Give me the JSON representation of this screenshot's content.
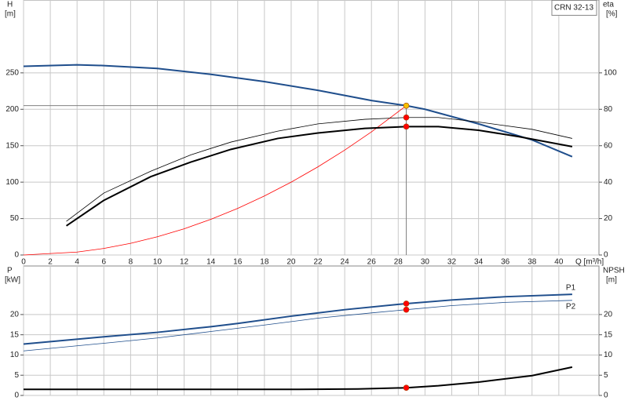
{
  "chart_data": [
    {
      "type": "line",
      "legend_box": "CRN 32-13",
      "y_label": "H",
      "y_unit": "[m]",
      "y2_label": "eta",
      "y2_unit": "[%]",
      "x_label": "Q [m³/h]",
      "xlim": [
        0,
        43
      ],
      "xticks": [
        0,
        2,
        4,
        6,
        8,
        10,
        12,
        14,
        16,
        18,
        20,
        22,
        24,
        26,
        28,
        30,
        32,
        34,
        36,
        38,
        40
      ],
      "ylim": [
        0,
        350
      ],
      "yticks": [
        0,
        50,
        100,
        150,
        200,
        250
      ],
      "y2lim": [
        0,
        140
      ],
      "y2ticks": [
        0,
        20,
        40,
        60,
        80,
        100
      ],
      "grid": true,
      "show_xtick_labels": true,
      "duty_point": {
        "x": 28.6,
        "y": 205,
        "color": "#808080"
      },
      "series": [
        {
          "color": "#1f4e8c",
          "width": 2,
          "axis": "y",
          "x": [
            0,
            4,
            6,
            10,
            14,
            18,
            22,
            26,
            28.6,
            30,
            34,
            38,
            41
          ],
          "values": [
            259,
            261,
            260,
            256,
            248,
            238,
            226,
            212,
            205,
            200,
            180,
            158,
            135
          ]
        },
        {
          "color": "#ff0000",
          "width": 0.8,
          "axis": "y",
          "x": [
            0,
            4,
            6,
            8,
            10,
            12,
            14,
            16,
            18,
            20,
            22,
            24,
            26,
            28.6
          ],
          "values": [
            0,
            4,
            9,
            16,
            25,
            36,
            49,
            64,
            81,
            100,
            121,
            144,
            169,
            205
          ]
        },
        {
          "color": "#000000",
          "width": 2,
          "axis": "y2",
          "x": [
            3.2,
            6,
            9.5,
            12.5,
            15.5,
            19,
            22,
            25.5,
            28.6,
            31,
            34,
            37,
            41
          ],
          "values": [
            16,
            30,
            43,
            51,
            58,
            64,
            67,
            69.5,
            70.5,
            70.5,
            68.5,
            65,
            59.5
          ]
        },
        {
          "color": "#000000",
          "width": 0.8,
          "axis": "y2",
          "x": [
            3.2,
            6,
            9.5,
            12.5,
            15.5,
            19,
            22,
            25.5,
            28.6,
            31,
            34,
            38,
            41
          ],
          "values": [
            18.5,
            34,
            46,
            55,
            62,
            68,
            72,
            74.5,
            75.5,
            75.5,
            73,
            69,
            64
          ]
        }
      ],
      "points": [
        {
          "x": 28.6,
          "y": 205,
          "axis": "y",
          "color": "#f5c000"
        },
        {
          "x": 28.6,
          "y": 75.5,
          "axis": "y2",
          "color": "#ff0000"
        },
        {
          "x": 28.6,
          "y": 70.5,
          "axis": "y2",
          "color": "#ff0000"
        }
      ]
    },
    {
      "type": "line",
      "y_label": "P",
      "y_unit": "[kW]",
      "y2_label": "NPSH",
      "y2_unit": "[m]",
      "xlim": [
        0,
        43
      ],
      "xticks": [
        0,
        2,
        4,
        6,
        8,
        10,
        12,
        14,
        16,
        18,
        20,
        22,
        24,
        26,
        28,
        30,
        32,
        34,
        36,
        38,
        40
      ],
      "ylim": [
        0,
        32
      ],
      "yticks": [
        0,
        5,
        10,
        15,
        20
      ],
      "y2lim": [
        0,
        32
      ],
      "y2ticks": [
        0,
        5,
        10,
        15,
        20
      ],
      "grid": true,
      "show_xtick_labels": false,
      "series": [
        {
          "name": "P1",
          "color": "#1f4e8c",
          "width": 2,
          "axis": "y",
          "x": [
            0,
            6,
            10,
            14,
            16,
            20,
            24,
            28.6,
            32,
            36,
            41
          ],
          "values": [
            12.7,
            14.5,
            15.6,
            17.0,
            17.8,
            19.6,
            21.2,
            22.7,
            23.6,
            24.4,
            25.0
          ]
        },
        {
          "name": "P2",
          "color": "#1f4e8c",
          "width": 0.8,
          "axis": "y",
          "x": [
            0,
            6,
            10,
            14,
            18,
            22,
            26,
            28.6,
            32,
            36,
            41
          ],
          "values": [
            11.0,
            12.9,
            14.2,
            15.8,
            17.4,
            19.1,
            20.4,
            21.2,
            22.2,
            23.0,
            23.5
          ]
        },
        {
          "color": "#000000",
          "width": 2,
          "axis": "y2",
          "x": [
            0,
            10,
            20,
            25,
            28.6,
            31,
            34,
            38,
            41
          ],
          "values": [
            1.5,
            1.5,
            1.5,
            1.6,
            1.9,
            2.4,
            3.3,
            4.9,
            7.0
          ]
        }
      ],
      "points": [
        {
          "x": 28.6,
          "y": 22.7,
          "axis": "y",
          "color": "#ff0000"
        },
        {
          "x": 28.6,
          "y": 21.2,
          "axis": "y",
          "color": "#ff0000"
        },
        {
          "x": 28.6,
          "y": 1.9,
          "axis": "y2",
          "color": "#ff0000"
        }
      ]
    }
  ]
}
